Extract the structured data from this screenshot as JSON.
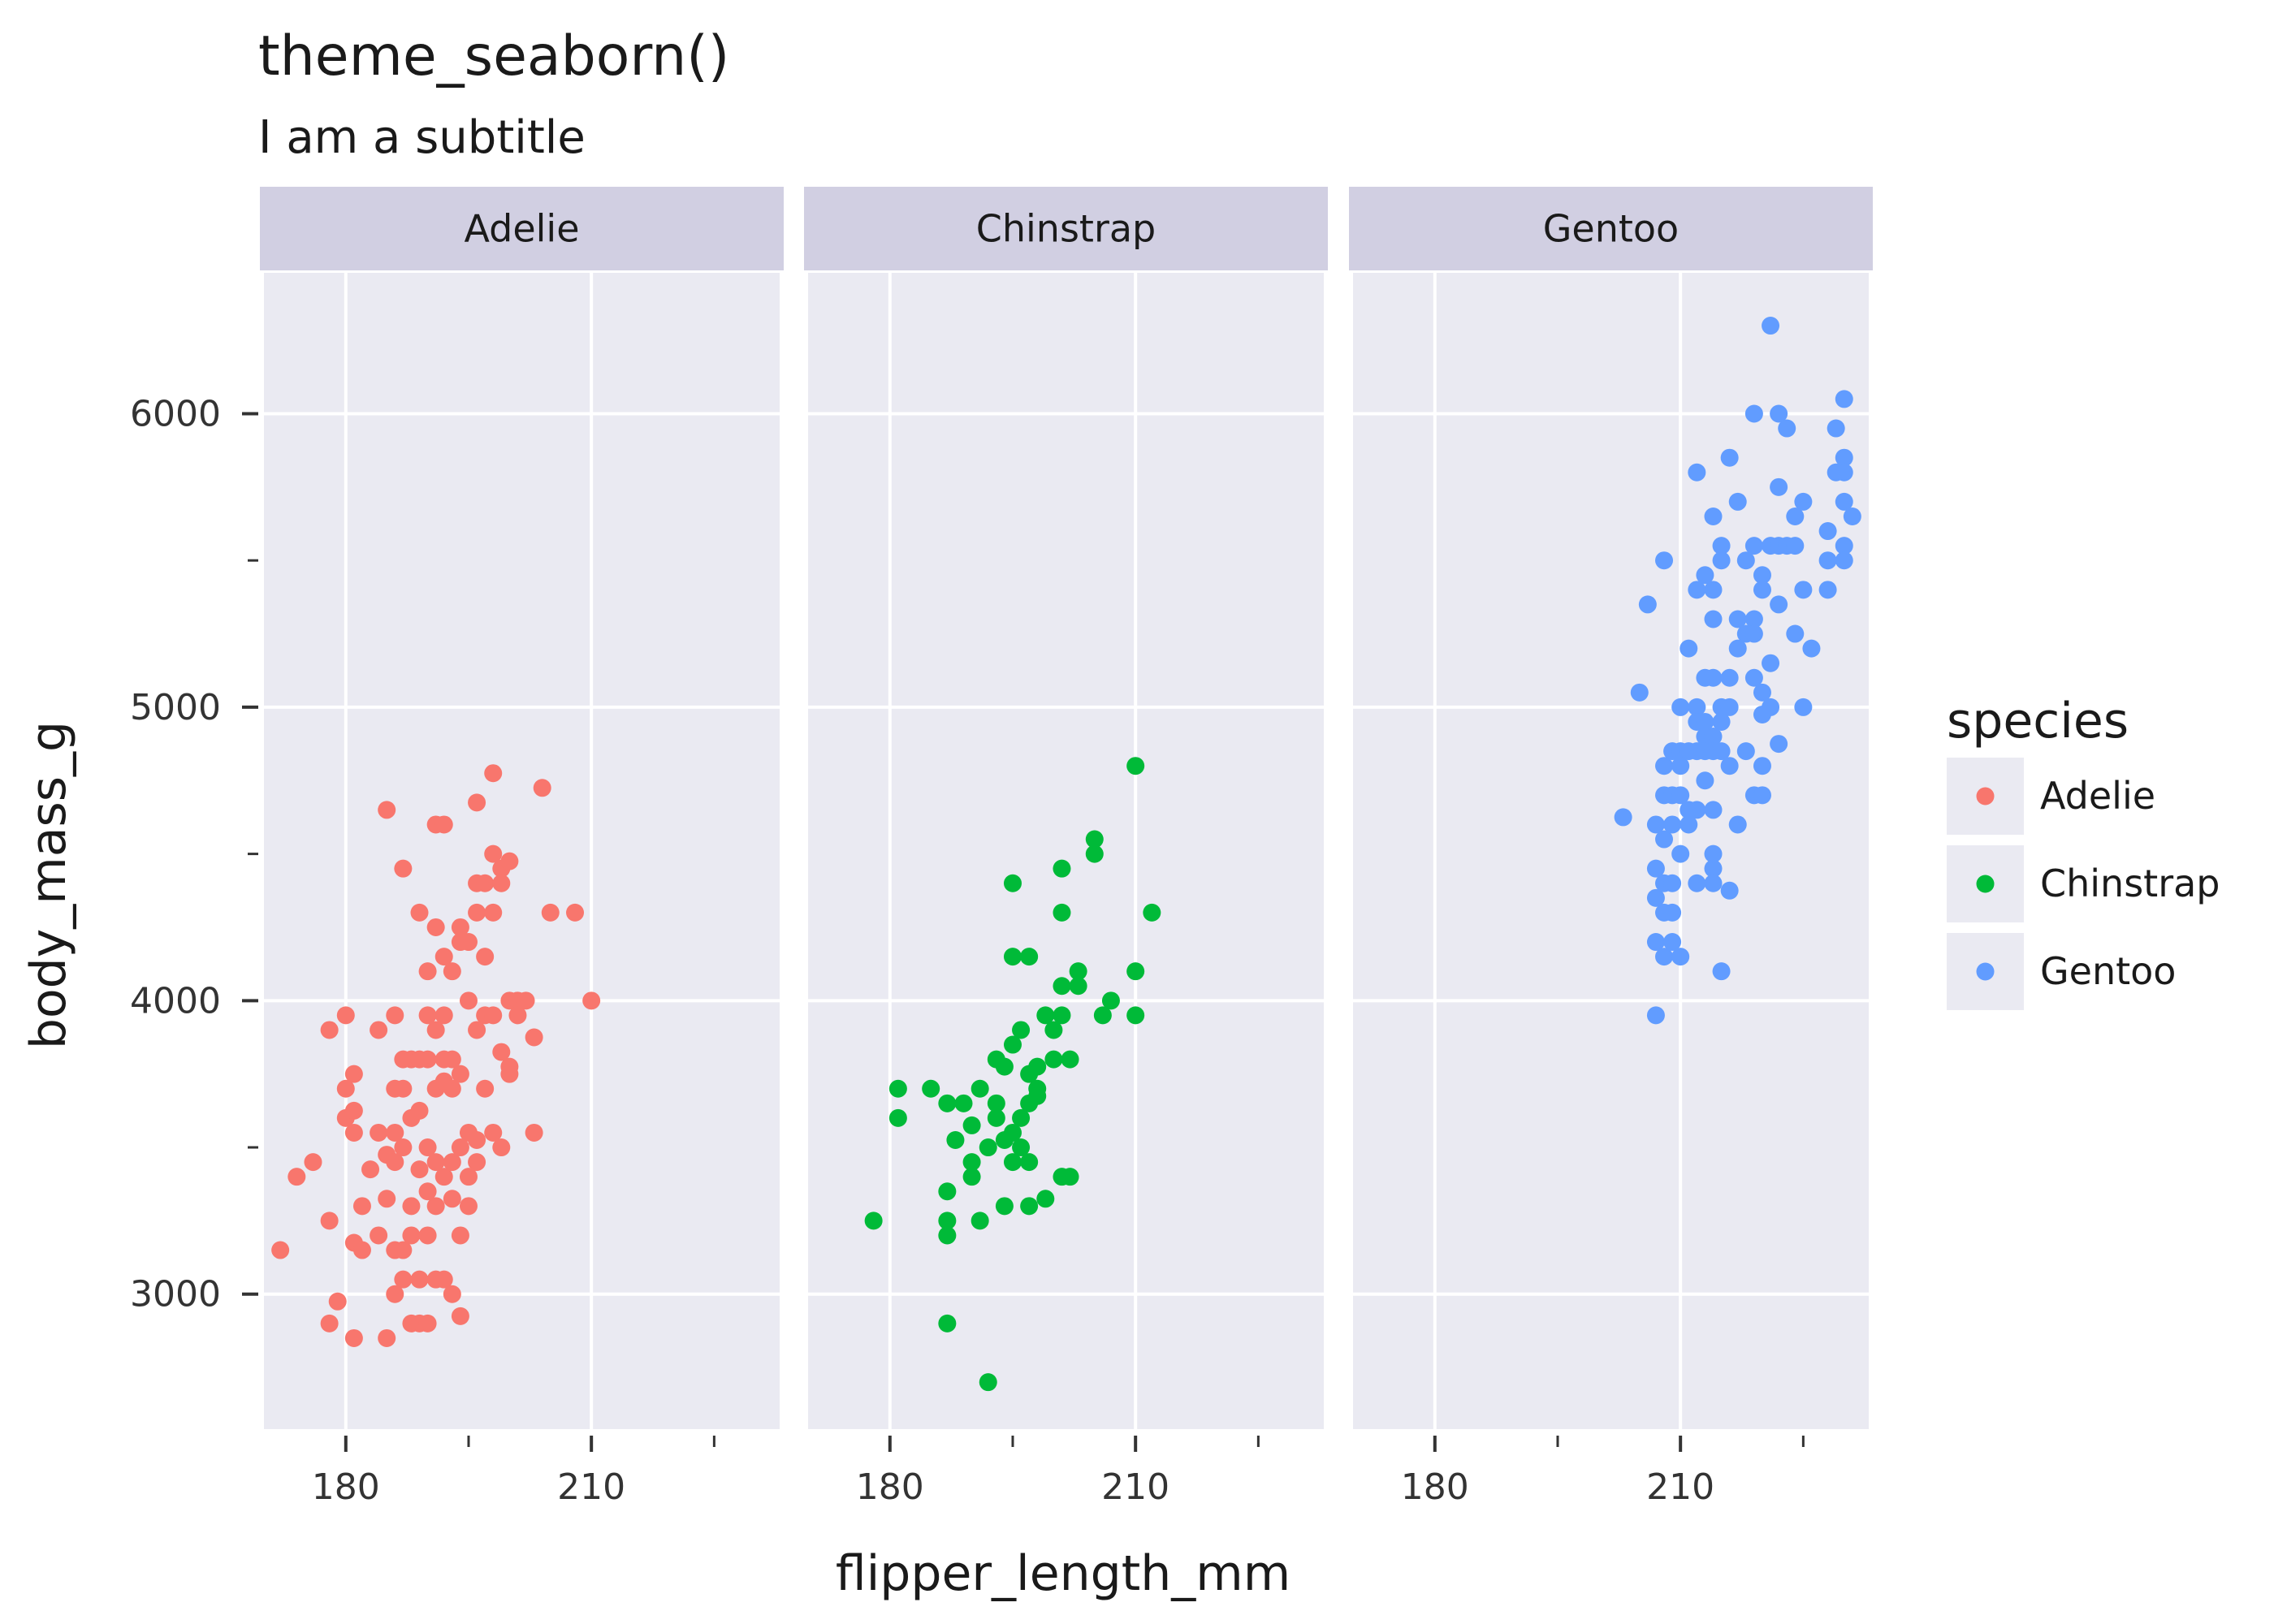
{
  "chart_data": {
    "type": "scatter",
    "title": "theme_seaborn()",
    "subtitle": "I am a subtitle",
    "xlabel": "flipper_length_mm",
    "ylabel": "body_mass_g",
    "xlim": [
      170,
      233
    ],
    "ylim": [
      2540,
      6480
    ],
    "x_major_ticks": [
      180,
      210
    ],
    "x_minor_ticks": [
      195,
      225
    ],
    "y_major_ticks": [
      3000,
      4000,
      5000,
      6000
    ],
    "y_minor_ticks": [
      3500,
      4500,
      5500
    ],
    "grid": true,
    "facet_by": "species",
    "facets": [
      "Adelie",
      "Chinstrap",
      "Gentoo"
    ],
    "legend": {
      "title": "species",
      "position": "right",
      "entries": [
        {
          "label": "Adelie",
          "color": "#F8766D"
        },
        {
          "label": "Chinstrap",
          "color": "#00BA38"
        },
        {
          "label": "Gentoo",
          "color": "#619CFF"
        }
      ]
    },
    "colors": {
      "panel_bg": "#EAEAF2",
      "strip_bg": "#D1CFE2",
      "grid": "#FFFFFF"
    },
    "series": [
      {
        "name": "Adelie",
        "points": [
          [
            172,
            3150
          ],
          [
            174,
            3400
          ],
          [
            176,
            3450
          ],
          [
            178,
            3900
          ],
          [
            178,
            3250
          ],
          [
            178,
            2900
          ],
          [
            179,
            2975
          ],
          [
            180,
            3950
          ],
          [
            180,
            3700
          ],
          [
            180,
            3600
          ],
          [
            181,
            3550
          ],
          [
            181,
            3625
          ],
          [
            181,
            3750
          ],
          [
            181,
            3175
          ],
          [
            181,
            2850
          ],
          [
            182,
            3300
          ],
          [
            182,
            3150
          ],
          [
            183,
            3425
          ],
          [
            184,
            3550
          ],
          [
            184,
            3900
          ],
          [
            184,
            3200
          ],
          [
            185,
            4650
          ],
          [
            185,
            3325
          ],
          [
            185,
            3475
          ],
          [
            185,
            2850
          ],
          [
            186,
            3550
          ],
          [
            186,
            3950
          ],
          [
            186,
            3700
          ],
          [
            186,
            3450
          ],
          [
            186,
            3150
          ],
          [
            186,
            3000
          ],
          [
            187,
            4450
          ],
          [
            187,
            3800
          ],
          [
            187,
            3700
          ],
          [
            187,
            3500
          ],
          [
            187,
            3150
          ],
          [
            187,
            3050
          ],
          [
            188,
            3800
          ],
          [
            188,
            3600
          ],
          [
            188,
            3300
          ],
          [
            188,
            3200
          ],
          [
            188,
            2900
          ],
          [
            189,
            4300
          ],
          [
            189,
            3800
          ],
          [
            189,
            3625
          ],
          [
            189,
            3425
          ],
          [
            189,
            3050
          ],
          [
            189,
            2900
          ],
          [
            190,
            4100
          ],
          [
            190,
            3950
          ],
          [
            190,
            3800
          ],
          [
            190,
            3500
          ],
          [
            190,
            3350
          ],
          [
            190,
            3200
          ],
          [
            190,
            2900
          ],
          [
            191,
            4600
          ],
          [
            191,
            4250
          ],
          [
            191,
            3900
          ],
          [
            191,
            3700
          ],
          [
            191,
            3450
          ],
          [
            191,
            3300
          ],
          [
            191,
            3050
          ],
          [
            192,
            4600
          ],
          [
            192,
            4150
          ],
          [
            192,
            3950
          ],
          [
            192,
            3725
          ],
          [
            192,
            3800
          ],
          [
            192,
            3400
          ],
          [
            192,
            3050
          ],
          [
            193,
            4100
          ],
          [
            193,
            3800
          ],
          [
            193,
            3700
          ],
          [
            193,
            3450
          ],
          [
            193,
            3325
          ],
          [
            193,
            3000
          ],
          [
            194,
            4250
          ],
          [
            194,
            4200
          ],
          [
            194,
            3750
          ],
          [
            194,
            3500
          ],
          [
            194,
            3200
          ],
          [
            194,
            2925
          ],
          [
            195,
            4200
          ],
          [
            195,
            4000
          ],
          [
            195,
            3550
          ],
          [
            195,
            3400
          ],
          [
            195,
            3300
          ],
          [
            196,
            4400
          ],
          [
            196,
            4300
          ],
          [
            196,
            4675
          ],
          [
            196,
            3900
          ],
          [
            196,
            3525
          ],
          [
            196,
            3450
          ],
          [
            197,
            4400
          ],
          [
            197,
            4150
          ],
          [
            197,
            3950
          ],
          [
            197,
            3700
          ],
          [
            198,
            4775
          ],
          [
            198,
            4500
          ],
          [
            198,
            4300
          ],
          [
            198,
            3950
          ],
          [
            198,
            3550
          ],
          [
            199,
            4450
          ],
          [
            199,
            4400
          ],
          [
            199,
            3825
          ],
          [
            199,
            3500
          ],
          [
            200,
            4475
          ],
          [
            200,
            4000
          ],
          [
            200,
            3750
          ],
          [
            200,
            3775
          ],
          [
            201,
            4000
          ],
          [
            201,
            3950
          ],
          [
            202,
            4000
          ],
          [
            203,
            3875
          ],
          [
            203,
            3550
          ],
          [
            204,
            4725
          ],
          [
            205,
            4300
          ],
          [
            208,
            4300
          ],
          [
            210,
            4000
          ]
        ]
      },
      {
        "name": "Chinstrap",
        "points": [
          [
            178,
            3250
          ],
          [
            181,
            3700
          ],
          [
            181,
            3600
          ],
          [
            185,
            3700
          ],
          [
            187,
            3650
          ],
          [
            187,
            3350
          ],
          [
            187,
            3250
          ],
          [
            187,
            3200
          ],
          [
            187,
            2900
          ],
          [
            188,
            3525
          ],
          [
            189,
            3650
          ],
          [
            190,
            3575
          ],
          [
            190,
            3450
          ],
          [
            190,
            3400
          ],
          [
            191,
            3700
          ],
          [
            191,
            3250
          ],
          [
            192,
            3500
          ],
          [
            192,
            2700
          ],
          [
            193,
            3800
          ],
          [
            193,
            3650
          ],
          [
            193,
            3600
          ],
          [
            194,
            3775
          ],
          [
            194,
            3525
          ],
          [
            194,
            3300
          ],
          [
            195,
            4400
          ],
          [
            195,
            4150
          ],
          [
            195,
            3850
          ],
          [
            195,
            3550
          ],
          [
            195,
            3450
          ],
          [
            196,
            3900
          ],
          [
            196,
            3600
          ],
          [
            196,
            3500
          ],
          [
            197,
            4150
          ],
          [
            197,
            3750
          ],
          [
            197,
            3650
          ],
          [
            197,
            3450
          ],
          [
            197,
            3300
          ],
          [
            198,
            3700
          ],
          [
            198,
            3675
          ],
          [
            198,
            3775
          ],
          [
            199,
            3950
          ],
          [
            199,
            3325
          ],
          [
            200,
            3900
          ],
          [
            200,
            3800
          ],
          [
            201,
            4450
          ],
          [
            201,
            4300
          ],
          [
            201,
            4050
          ],
          [
            201,
            3950
          ],
          [
            201,
            3400
          ],
          [
            202,
            3800
          ],
          [
            202,
            3400
          ],
          [
            203,
            4100
          ],
          [
            203,
            4050
          ],
          [
            205,
            4550
          ],
          [
            205,
            4500
          ],
          [
            206,
            3950
          ],
          [
            207,
            4000
          ],
          [
            210,
            4800
          ],
          [
            210,
            4100
          ],
          [
            210,
            3950
          ],
          [
            212,
            4300
          ]
        ]
      },
      {
        "name": "Gentoo",
        "points": [
          [
            203,
            4625
          ],
          [
            205,
            5050
          ],
          [
            206,
            5350
          ],
          [
            207,
            4600
          ],
          [
            207,
            4450
          ],
          [
            207,
            4350
          ],
          [
            207,
            4200
          ],
          [
            207,
            3950
          ],
          [
            208,
            5500
          ],
          [
            208,
            4800
          ],
          [
            208,
            4700
          ],
          [
            208,
            4550
          ],
          [
            208,
            4400
          ],
          [
            208,
            4300
          ],
          [
            208,
            4150
          ],
          [
            209,
            4850
          ],
          [
            209,
            4700
          ],
          [
            209,
            4600
          ],
          [
            209,
            4400
          ],
          [
            209,
            4300
          ],
          [
            209,
            4200
          ],
          [
            210,
            5000
          ],
          [
            210,
            4850
          ],
          [
            210,
            4800
          ],
          [
            210,
            4700
          ],
          [
            210,
            4500
          ],
          [
            210,
            4150
          ],
          [
            211,
            5200
          ],
          [
            211,
            4650
          ],
          [
            211,
            4600
          ],
          [
            211,
            4850
          ],
          [
            212,
            5800
          ],
          [
            212,
            5400
          ],
          [
            212,
            5000
          ],
          [
            212,
            4950
          ],
          [
            212,
            4850
          ],
          [
            212,
            4650
          ],
          [
            212,
            4400
          ],
          [
            213,
            5450
          ],
          [
            213,
            5100
          ],
          [
            213,
            4950
          ],
          [
            213,
            4900
          ],
          [
            213,
            4850
          ],
          [
            213,
            4750
          ],
          [
            214,
            5650
          ],
          [
            214,
            5400
          ],
          [
            214,
            5300
          ],
          [
            214,
            5100
          ],
          [
            214,
            4900
          ],
          [
            214,
            4850
          ],
          [
            214,
            4650
          ],
          [
            214,
            4450
          ],
          [
            214,
            4400
          ],
          [
            214,
            4500
          ],
          [
            215,
            5550
          ],
          [
            215,
            5500
          ],
          [
            215,
            5000
          ],
          [
            215,
            4950
          ],
          [
            215,
            4850
          ],
          [
            215,
            4100
          ],
          [
            216,
            5850
          ],
          [
            216,
            5100
          ],
          [
            216,
            5000
          ],
          [
            216,
            4800
          ],
          [
            216,
            4375
          ],
          [
            217,
            5700
          ],
          [
            217,
            5300
          ],
          [
            217,
            5200
          ],
          [
            217,
            4600
          ],
          [
            218,
            5500
          ],
          [
            218,
            5250
          ],
          [
            218,
            4850
          ],
          [
            219,
            6000
          ],
          [
            219,
            5550
          ],
          [
            219,
            5300
          ],
          [
            219,
            5250
          ],
          [
            219,
            4700
          ],
          [
            219,
            5100
          ],
          [
            220,
            5450
          ],
          [
            220,
            5400
          ],
          [
            220,
            5050
          ],
          [
            220,
            4700
          ],
          [
            220,
            4975
          ],
          [
            220,
            4800
          ],
          [
            221,
            6300
          ],
          [
            221,
            5550
          ],
          [
            221,
            5150
          ],
          [
            221,
            5000
          ],
          [
            222,
            6000
          ],
          [
            222,
            5750
          ],
          [
            222,
            5550
          ],
          [
            222,
            5350
          ],
          [
            222,
            4875
          ],
          [
            223,
            5950
          ],
          [
            223,
            5550
          ],
          [
            224,
            5650
          ],
          [
            224,
            5550
          ],
          [
            224,
            5250
          ],
          [
            225,
            5700
          ],
          [
            225,
            5400
          ],
          [
            225,
            5000
          ],
          [
            226,
            5200
          ],
          [
            228,
            5600
          ],
          [
            228,
            5500
          ],
          [
            228,
            5400
          ],
          [
            229,
            5800
          ],
          [
            229,
            5950
          ],
          [
            230,
            5850
          ],
          [
            230,
            5800
          ],
          [
            230,
            5700
          ],
          [
            230,
            5550
          ],
          [
            230,
            5500
          ],
          [
            230,
            6050
          ],
          [
            231,
            5650
          ]
        ]
      }
    ]
  }
}
